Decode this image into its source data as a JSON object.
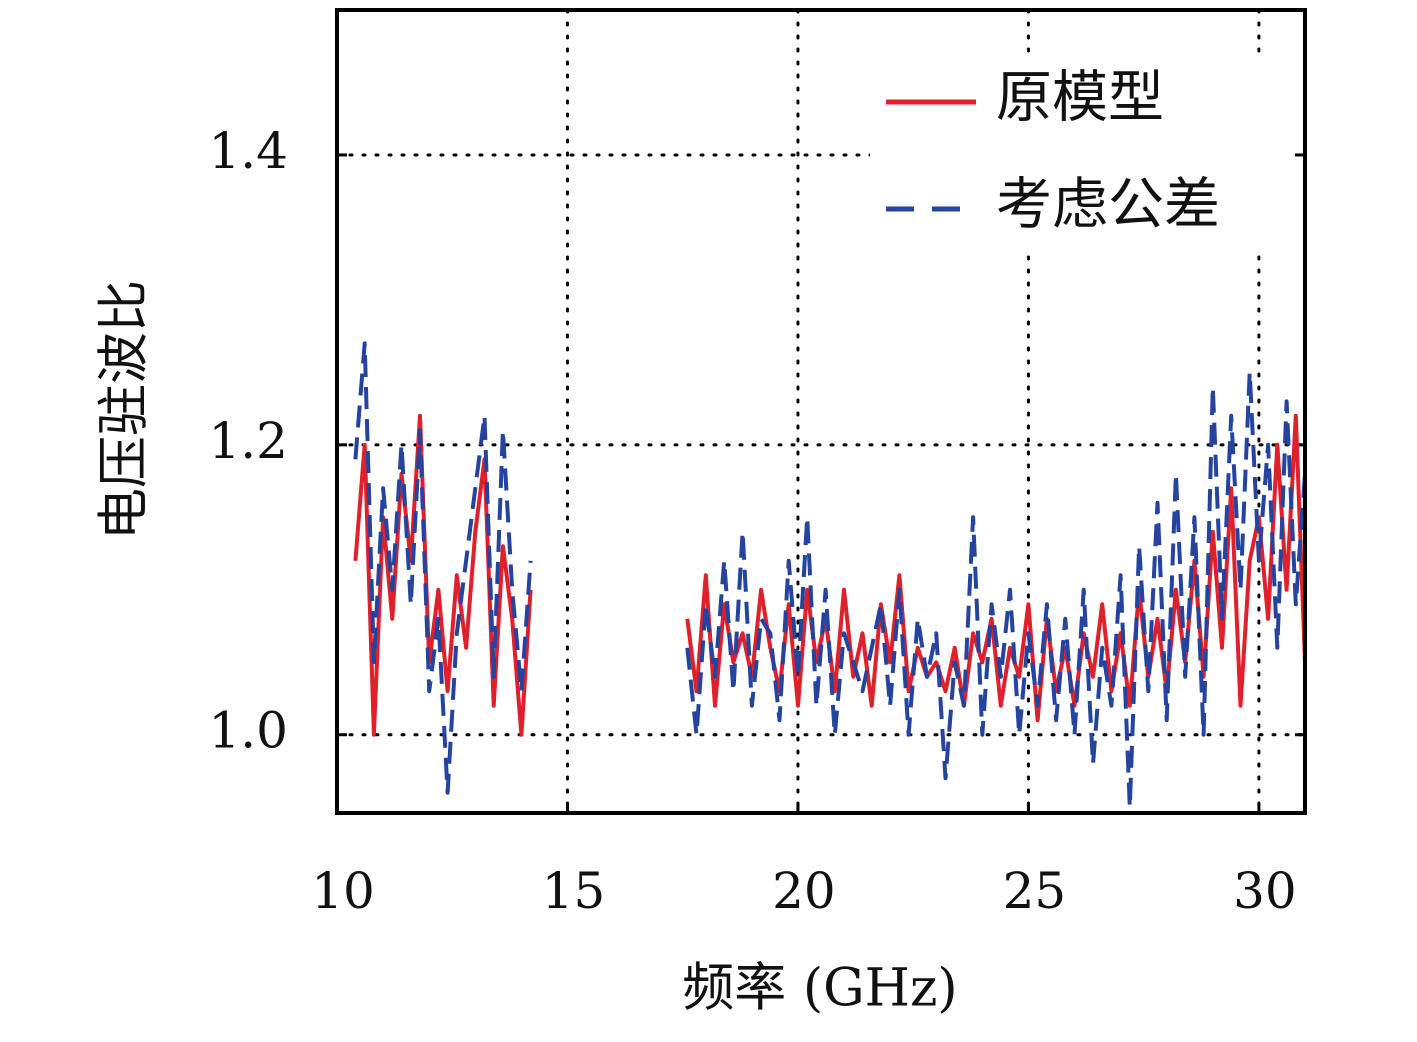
{
  "chart_data": {
    "type": "line",
    "xlabel": "频率 (GHz)",
    "ylabel": "电压驻波比",
    "xlim": [
      10,
      31
    ],
    "xticks": [
      10,
      15,
      20,
      25,
      30
    ],
    "ylim": [
      0.946,
      1.5
    ],
    "yticks": [
      {
        "value": 1,
        "label": "1.0"
      },
      1.2,
      1.4
    ],
    "grid": true,
    "legend": "upper right",
    "x": [
      10.4,
      10.6,
      10.8,
      11,
      11.2,
      11.4,
      11.6,
      11.8,
      12,
      12.2,
      12.4,
      12.6,
      12.8,
      13,
      13.2,
      13.4,
      13.6,
      13.8,
      14,
      14.2,
      16,
      17.6,
      17.8,
      18,
      18.2,
      18.4,
      18.6,
      18.8,
      19,
      19.2,
      19.4,
      19.6,
      19.8,
      20,
      20.2,
      20.4,
      20.6,
      20.8,
      21,
      21.2,
      21.4,
      21.6,
      21.8,
      22,
      22.2,
      22.4,
      22.6,
      22.8,
      23,
      23.2,
      23.4,
      23.6,
      23.8,
      24,
      24.2,
      24.4,
      24.6,
      24.8,
      25,
      25.2,
      25.4,
      25.6,
      25.8,
      26,
      26.2,
      26.4,
      26.6,
      26.8,
      27,
      27.2,
      27.4,
      27.6,
      27.8,
      28,
      28.2,
      28.4,
      28.6,
      28.8,
      29,
      29.2,
      29.4,
      29.6,
      29.8,
      30,
      30.2,
      30.4,
      30.6,
      30.8,
      31
    ],
    "series": [
      {
        "name": "原模型",
        "color": "#e0202a",
        "dash": false,
        "values": [
          1.12,
          1.2,
          1.0,
          1.15,
          1.08,
          1.18,
          1.12,
          1.22,
          1.05,
          1.1,
          1.03,
          1.11,
          1.06,
          1.14,
          1.19,
          1.02,
          1.13,
          1.08,
          1.0,
          1.1,
          null,
          1.08,
          1.03,
          1.11,
          1.02,
          1.09,
          1.05,
          1.07,
          1.04,
          1.1,
          1.06,
          1.03,
          1.09,
          1.02,
          1.1,
          1.05,
          1.08,
          1.03,
          1.1,
          1.04,
          1.07,
          1.02,
          1.09,
          1.05,
          1.11,
          1.03,
          1.06,
          1.04,
          1.05,
          1.03,
          1.06,
          1.02,
          1.07,
          1.05,
          1.08,
          1.02,
          1.06,
          1.04,
          1.09,
          1.01,
          1.08,
          1.03,
          1.06,
          1.02,
          1.07,
          1.04,
          1.09,
          1.03,
          1.07,
          1.02,
          1.1,
          1.04,
          1.08,
          1.03,
          1.1,
          1.05,
          1.12,
          1.04,
          1.14,
          1.06,
          1.17,
          1.02,
          1.12,
          1.15,
          1.08,
          1.2,
          1.1,
          1.22,
          1.05
        ]
      },
      {
        "name": "考虑公差",
        "color": "#2444a0",
        "dash": true,
        "values": [
          1.19,
          1.27,
          1.05,
          1.17,
          1.1,
          1.2,
          1.09,
          1.21,
          1.03,
          1.08,
          0.96,
          1.07,
          1.12,
          1.17,
          1.22,
          1.04,
          1.21,
          1.1,
          1.03,
          1.12,
          null,
          1.06,
          1.0,
          1.09,
          1.04,
          1.12,
          1.03,
          1.14,
          1.02,
          1.08,
          1.07,
          1.01,
          1.12,
          1.04,
          1.15,
          1.02,
          1.1,
          1.0,
          1.07,
          1.05,
          1.03,
          1.06,
          1.09,
          1.02,
          1.1,
          1.0,
          1.08,
          1.04,
          1.07,
          0.97,
          1.05,
          1.02,
          1.15,
          1.0,
          1.09,
          1.04,
          1.1,
          1.0,
          1.07,
          1.02,
          1.09,
          1.01,
          1.08,
          1.0,
          1.1,
          0.98,
          1.06,
          1.02,
          1.11,
          0.95,
          1.13,
          1.03,
          1.16,
          1.01,
          1.18,
          1.04,
          1.15,
          1.0,
          1.24,
          1.08,
          1.22,
          1.1,
          1.25,
          1.12,
          1.2,
          1.06,
          1.23,
          1.09,
          1.18
        ]
      }
    ]
  }
}
